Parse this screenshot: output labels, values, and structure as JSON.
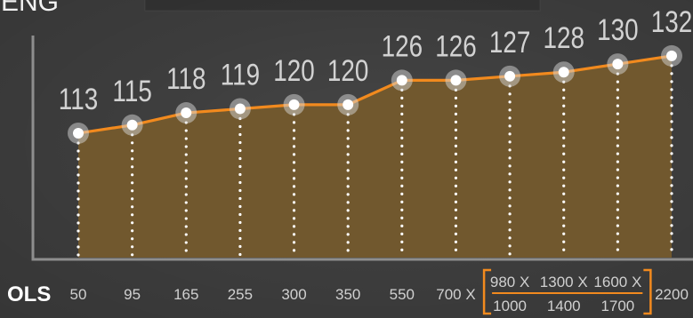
{
  "header": {
    "title": "ENG"
  },
  "colors": {
    "background": "#3c3c3c",
    "axis": "#8e8e8e",
    "line": "#f28a1e",
    "area_fill": "#745a2d",
    "point": "#ffffff",
    "point_halo": "#d6d6d6",
    "drop_line": "#ffffff",
    "value_label": "#d2d2d2",
    "tick_label": "#d0d0d0",
    "axis_title": "#ffffff",
    "bracket": "#f28a1e"
  },
  "chart_data": {
    "type": "area",
    "xlabel": "OLS",
    "categories": [
      "50",
      "95",
      "165",
      "255",
      "300",
      "350",
      "550",
      "700 X",
      "980 X",
      "1300 X",
      "1600 X",
      "2200"
    ],
    "categories_line2": [
      "",
      "",
      "",
      "",
      "",
      "",
      "",
      "",
      "1000",
      "1400",
      "1700",
      ""
    ],
    "bracketed_categories": [
      8,
      10
    ],
    "values": [
      113,
      115,
      118,
      119,
      120,
      120,
      126,
      126,
      127,
      128,
      130,
      132
    ],
    "data_labels": true,
    "ylim": [
      82,
      137
    ],
    "grid": false,
    "legend": "none"
  }
}
